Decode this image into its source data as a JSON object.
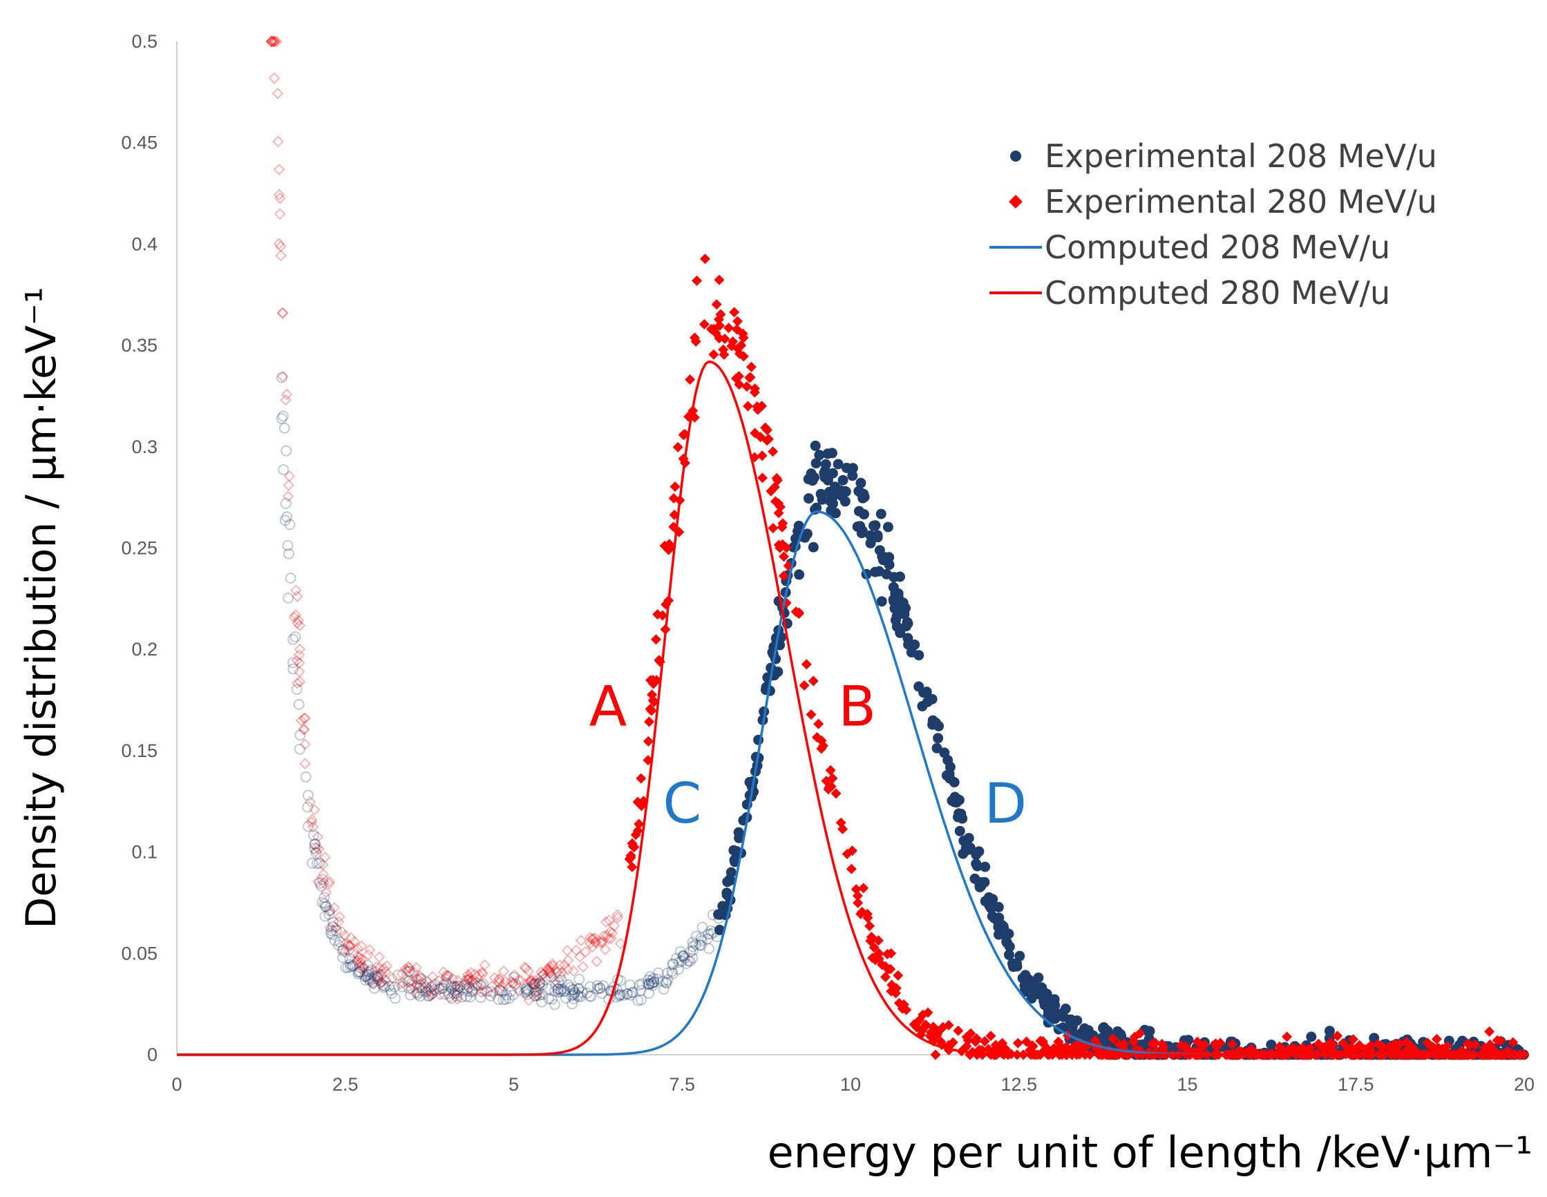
{
  "chart_data": {
    "type": "scatter",
    "ylabel": "Density distribution / µm·keV⁻¹",
    "xlabel": "energy per unit of length /keV·µm⁻¹",
    "xlim": [
      0,
      20
    ],
    "ylim": [
      0,
      0.5
    ],
    "x_ticks": [
      "0",
      "2.5",
      "5",
      "7.5",
      "10",
      "12.5",
      "15",
      "17.5",
      "20"
    ],
    "y_ticks": [
      "0",
      "0.05",
      "0.1",
      "0.15",
      "0.2",
      "0.25",
      "0.3",
      "0.35",
      "0.4",
      "0.45",
      "0.5"
    ],
    "legend_position": "top-right",
    "series": [
      {
        "name": "Experimental 208 MeV/u",
        "kind": "scatter",
        "marker": "circle",
        "color": "#1f3d6b",
        "peak_x": 9.7,
        "peak_y": 0.285,
        "sigma_left": 0.95,
        "sigma_right": 1.45,
        "filled_from_x": 8.0,
        "low_energy_open_markers": true
      },
      {
        "name": "Experimental 280 MeV/u",
        "kind": "scatter",
        "marker": "diamond",
        "color": "#ff0000",
        "peak_x": 7.95,
        "peak_y": 0.36,
        "sigma_left": 0.75,
        "sigma_right": 1.25,
        "filled_from_x": 6.7,
        "low_energy_open_markers": true
      },
      {
        "name": "Computed 208 MeV/u",
        "kind": "line",
        "color": "#1f78c8",
        "peak_x": 9.5,
        "peak_y": 0.268,
        "sigma_left": 0.8,
        "sigma_right": 1.45
      },
      {
        "name": "Computed 280 MeV/u",
        "kind": "line",
        "color": "#ff0000",
        "peak_x": 7.9,
        "peak_y": 0.342,
        "sigma_left": 0.65,
        "sigma_right": 1.15
      }
    ],
    "annotations": [
      {
        "text": "A",
        "x": 6.4,
        "y": 0.172,
        "color": "#ff0000"
      },
      {
        "text": "B",
        "x": 10.1,
        "y": 0.172,
        "color": "#ff0000"
      },
      {
        "text": "C",
        "x": 7.5,
        "y": 0.124,
        "color": "#1f78c8"
      },
      {
        "text": "D",
        "x": 12.3,
        "y": 0.124,
        "color": "#1f78c8"
      }
    ]
  }
}
